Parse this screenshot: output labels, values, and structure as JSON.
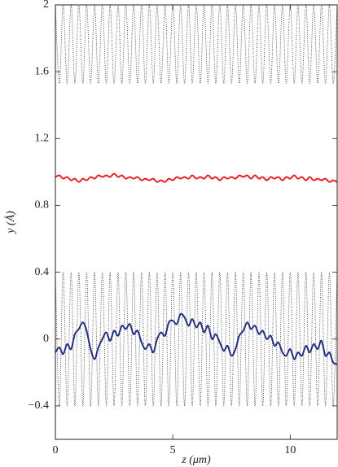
{
  "chart_data": {
    "type": "line",
    "xlabel": "z (μm)",
    "ylabel": "y (Å)",
    "xlim": [
      0,
      12
    ],
    "ylim": [
      -0.6,
      2
    ],
    "xticks": [
      0,
      5,
      10
    ],
    "yticks": [
      {
        "value": -0.4,
        "label": "−0.4"
      },
      0,
      0.4,
      0.8,
      1.2,
      1.6,
      2
    ],
    "grid": false,
    "x": [
      0,
      0.17,
      0.33,
      0.5,
      0.67,
      0.83,
      1,
      1.17,
      1.33,
      1.5,
      1.67,
      1.83,
      2,
      2.17,
      2.33,
      2.5,
      2.67,
      2.83,
      3,
      3.17,
      3.33,
      3.5,
      3.67,
      3.83,
      4,
      4.17,
      4.33,
      4.5,
      4.67,
      4.83,
      5,
      5.17,
      5.33,
      5.5,
      5.67,
      5.83,
      6,
      6.17,
      6.33,
      6.5,
      6.67,
      6.83,
      7,
      7.17,
      7.33,
      7.5,
      7.67,
      7.83,
      8,
      8.17,
      8.33,
      8.5,
      8.67,
      8.83,
      9,
      9.17,
      9.33,
      9.5,
      9.67,
      9.83,
      10,
      10.17,
      10.33,
      10.5,
      10.67,
      10.83,
      11,
      11.17,
      11.33,
      11.5,
      11.67,
      11.83,
      12
    ],
    "series": [
      {
        "color": "#333333",
        "line_style": "dotted",
        "values": [
          2,
          1.53,
          2,
          1.53,
          2,
          1.53,
          2,
          1.53,
          2,
          1.53,
          2,
          1.53,
          2,
          1.53,
          2,
          1.53,
          2,
          1.53,
          2,
          1.53,
          2,
          1.53,
          2,
          1.53,
          2,
          1.53,
          2,
          1.53,
          2,
          1.53,
          2,
          1.53,
          2,
          1.53,
          2,
          1.53,
          2,
          1.53,
          2,
          1.53,
          2,
          1.53,
          2,
          1.53,
          2,
          1.53,
          2,
          1.53,
          2,
          1.53,
          2,
          1.53,
          2,
          1.53,
          2,
          1.53,
          2,
          1.53,
          2,
          1.53,
          2,
          1.53,
          2,
          1.53,
          2,
          1.53,
          2,
          1.53,
          2,
          1.53,
          2,
          1.53,
          2
        ]
      },
      {
        "color": "#333333",
        "line_style": "dotted",
        "values": [
          0.4,
          -0.4,
          0.4,
          -0.4,
          0.4,
          -0.4,
          0.4,
          -0.4,
          0.4,
          -0.4,
          0.4,
          -0.4,
          0.4,
          -0.4,
          0.4,
          -0.4,
          0.4,
          -0.4,
          0.4,
          -0.4,
          0.4,
          -0.4,
          0.4,
          -0.4,
          0.4,
          -0.4,
          0.4,
          -0.4,
          0.4,
          -0.4,
          0.4,
          -0.4,
          0.4,
          -0.4,
          0.4,
          -0.4,
          0.4,
          -0.4,
          0.4,
          -0.4,
          0.4,
          -0.4,
          0.4,
          -0.4,
          0.4,
          -0.4,
          0.4,
          -0.4,
          0.4,
          -0.4,
          0.4,
          -0.4,
          0.4,
          -0.4,
          0.4,
          -0.4,
          0.4,
          -0.4,
          0.4,
          -0.4,
          0.4,
          -0.4,
          0.4,
          -0.4,
          0.4,
          -0.4,
          0.4,
          -0.4,
          0.4,
          -0.4,
          0.4,
          -0.4,
          0.4
        ]
      },
      {
        "color": "#e8202a",
        "line_style": "solid",
        "values": [
          0.97,
          0.98,
          0.96,
          0.97,
          0.95,
          0.96,
          0.94,
          0.96,
          0.95,
          0.97,
          0.96,
          0.98,
          0.97,
          0.98,
          0.97,
          0.99,
          0.97,
          0.98,
          0.96,
          0.97,
          0.96,
          0.97,
          0.95,
          0.96,
          0.95,
          0.96,
          0.94,
          0.95,
          0.94,
          0.96,
          0.95,
          0.97,
          0.96,
          0.97,
          0.96,
          0.98,
          0.96,
          0.97,
          0.96,
          0.98,
          0.96,
          0.97,
          0.95,
          0.97,
          0.96,
          0.97,
          0.96,
          0.98,
          0.97,
          0.98,
          0.96,
          0.98,
          0.96,
          0.97,
          0.95,
          0.97,
          0.96,
          0.97,
          0.95,
          0.97,
          0.96,
          0.98,
          0.96,
          0.97,
          0.95,
          0.97,
          0.95,
          0.96,
          0.95,
          0.96,
          0.94,
          0.95,
          0.94
        ]
      },
      {
        "color": "#22307f",
        "line_style": "solid",
        "values": [
          -0.08,
          -0.05,
          -0.09,
          -0.03,
          -0.06,
          0.03,
          0.06,
          0.1,
          0.05,
          -0.06,
          -0.12,
          -0.05,
          0,
          0.04,
          -0.01,
          0.05,
          0.02,
          0.08,
          0.06,
          0.09,
          0.03,
          0.05,
          -0.02,
          -0.06,
          -0.03,
          -0.08,
          0,
          0.04,
          0.02,
          0.1,
          0.11,
          0.09,
          0.15,
          0.13,
          0.08,
          0.12,
          0.07,
          0.1,
          0.04,
          0.08,
          0,
          0.03,
          -0.02,
          -0.07,
          -0.04,
          -0.1,
          -0.06,
          0.02,
          0.05,
          0.1,
          0.06,
          0.08,
          0.03,
          0.05,
          0,
          0.02,
          -0.04,
          -0.02,
          -0.08,
          -0.1,
          -0.06,
          -0.12,
          -0.08,
          -0.1,
          -0.04,
          -0.08,
          -0.03,
          -0.06,
          -0.01,
          -0.1,
          -0.08,
          -0.14,
          -0.15
        ]
      }
    ]
  }
}
